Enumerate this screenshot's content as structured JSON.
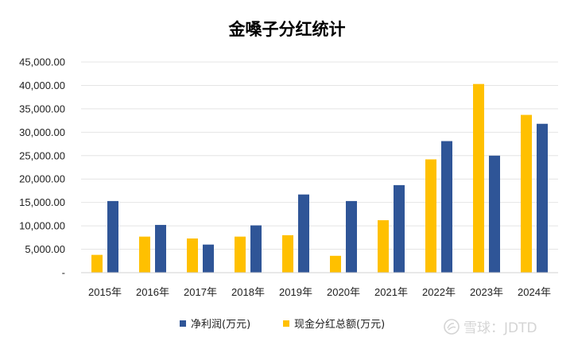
{
  "chart_data": {
    "type": "bar",
    "title": "金嗓子分红统计",
    "categories": [
      "2015年",
      "2016年",
      "2017年",
      "2018年",
      "2019年",
      "2020年",
      "2021年",
      "2022年",
      "2023年",
      "2024年"
    ],
    "series": [
      {
        "name": "现金分红总额(万元)",
        "color": "#FFC000",
        "values": [
          3800,
          7700,
          7300,
          7700,
          8000,
          3600,
          11200,
          24200,
          40300,
          33700
        ]
      },
      {
        "name": "净利润(万元)",
        "color": "#2F5597",
        "values": [
          15300,
          10200,
          6000,
          10100,
          16700,
          15300,
          18700,
          28100,
          25000,
          31800
        ]
      }
    ],
    "ylim": [
      0,
      45000
    ],
    "yticks": [
      0,
      5000,
      10000,
      15000,
      20000,
      25000,
      30000,
      35000,
      40000,
      45000
    ],
    "ytick_labels": [
      "-",
      "5,000.00",
      "10,000.00",
      "15,000.00",
      "20,000.00",
      "25,000.00",
      "30,000.00",
      "35,000.00",
      "40,000.00",
      "45,000.00"
    ],
    "legend_order": [
      1,
      0
    ],
    "legend_position": "bottom",
    "grid": true
  },
  "watermark": {
    "text": "雪球：JDTD"
  }
}
